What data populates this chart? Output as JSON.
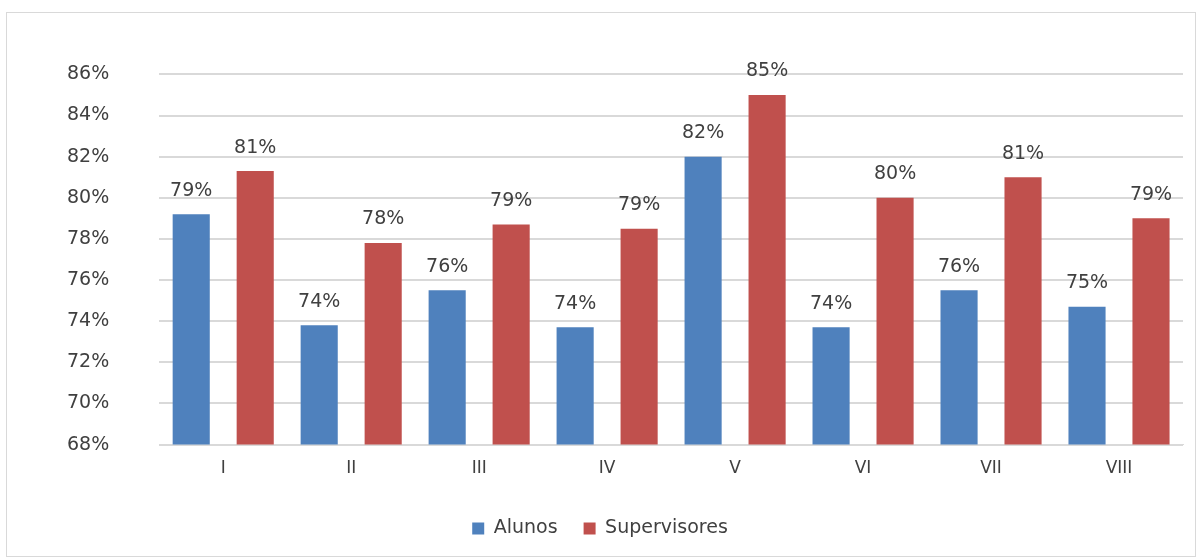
{
  "chart_data": {
    "type": "bar",
    "categories": [
      "I",
      "II",
      "III",
      "IV",
      "V",
      "VI",
      "VII",
      "VIII"
    ],
    "series": [
      {
        "name": "Alunos",
        "color": "#4f81bd",
        "values": [
          79.2,
          73.8,
          75.5,
          73.7,
          82.0,
          73.7,
          75.5,
          74.7
        ],
        "value_labels": [
          "79%",
          "74%",
          "76%",
          "74%",
          "82%",
          "74%",
          "76%",
          "75%"
        ]
      },
      {
        "name": "Supervisores",
        "color": "#c0504d",
        "values": [
          81.3,
          77.8,
          78.7,
          78.5,
          85.0,
          80.0,
          81.0,
          79.0
        ],
        "value_labels": [
          "81%",
          "78%",
          "79%",
          "79%",
          "85%",
          "80%",
          "81%",
          "79%"
        ]
      }
    ],
    "ylim": [
      68,
      86
    ],
    "yticks": [
      {
        "value": 68,
        "label": "68%"
      },
      {
        "value": 70,
        "label": "70%"
      },
      {
        "value": 72,
        "label": "72%"
      },
      {
        "value": 74,
        "label": "74%"
      },
      {
        "value": 76,
        "label": "76%"
      },
      {
        "value": 78,
        "label": "78%"
      },
      {
        "value": 80,
        "label": "80%"
      },
      {
        "value": 82,
        "label": "82%"
      },
      {
        "value": 84,
        "label": "84%"
      },
      {
        "value": 86,
        "label": "86%"
      }
    ],
    "grid": "y",
    "legend": "bottom"
  }
}
